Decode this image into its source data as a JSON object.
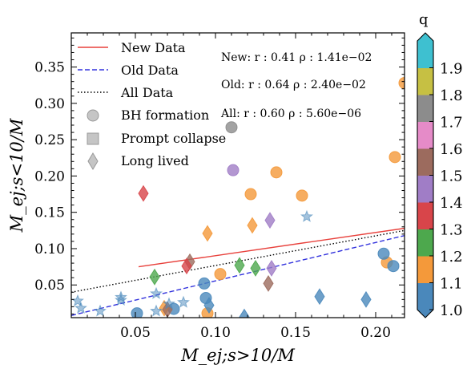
{
  "chart_data": {
    "type": "scatter",
    "xlabel": "M_ej;s>10/M",
    "ylabel": "M_ej;s<10/M",
    "xlim": [
      0.01,
      0.218
    ],
    "ylim": [
      0.005,
      0.397
    ],
    "x_ticks": [
      0.05,
      0.1,
      0.15,
      0.2
    ],
    "x_tick_labels": [
      "0.05",
      "0.10",
      "0.15",
      "0.20"
    ],
    "y_ticks": [
      0.05,
      0.1,
      0.15,
      0.2,
      0.25,
      0.3,
      0.35
    ],
    "y_tick_labels": [
      "0.05",
      "0.10",
      "0.15",
      "0.20",
      "0.25",
      "0.30",
      "0.35"
    ],
    "grid": false,
    "legend_placement": "top-left",
    "legend": {
      "lines": [
        {
          "label": "New Data",
          "color": "#e8413c",
          "style": "solid"
        },
        {
          "label": "Old Data",
          "color": "#3333dd",
          "style": "dashed"
        },
        {
          "label": "All Data",
          "color": "#000000",
          "style": "dotted"
        }
      ],
      "markers": [
        {
          "label": "BH formation",
          "shape": "circle"
        },
        {
          "label": "Prompt collapse",
          "shape": "square"
        },
        {
          "label": "Long lived",
          "shape": "diamond"
        }
      ]
    },
    "stats": [
      "New: r : 0.41 ρ : 1.41e−02",
      "Old: r : 0.64 ρ : 2.40e−02",
      "All: r : 0.60 ρ : 5.60e−06"
    ],
    "fits": [
      {
        "name": "New Data",
        "x": [
          0.052,
          0.218
        ],
        "y": [
          0.075,
          0.128
        ]
      },
      {
        "name": "Old Data",
        "x": [
          0.01,
          0.218
        ],
        "y": [
          0.008,
          0.118
        ]
      },
      {
        "name": "All Data",
        "x": [
          0.01,
          0.218
        ],
        "y": [
          0.04,
          0.125
        ]
      }
    ],
    "colorbar": {
      "label": "q",
      "ticks": [
        "1.0",
        "1.1",
        "1.2",
        "1.3",
        "1.4",
        "1.5",
        "1.6",
        "1.7",
        "1.8",
        "1.9"
      ],
      "colors": [
        "#4a88bb",
        "#f4993a",
        "#4da84d",
        "#d8454a",
        "#a07dc6",
        "#9c6b5e",
        "#e58bc8",
        "#8c8c8c",
        "#c6c043",
        "#3ec0d0"
      ]
    },
    "points": [
      {
        "x": 0.218,
        "y": 0.328,
        "q": 1.1,
        "m": "circle",
        "alpha": 0.8
      },
      {
        "x": 0.11,
        "y": 0.267,
        "q": 1.7,
        "m": "circle",
        "alpha": 0.8
      },
      {
        "x": 0.212,
        "y": 0.226,
        "q": 1.1,
        "m": "circle",
        "alpha": 0.8
      },
      {
        "x": 0.111,
        "y": 0.208,
        "q": 1.4,
        "m": "circle",
        "alpha": 0.8
      },
      {
        "x": 0.138,
        "y": 0.205,
        "q": 1.1,
        "m": "circle",
        "alpha": 0.8
      },
      {
        "x": 0.122,
        "y": 0.175,
        "q": 1.1,
        "m": "circle",
        "alpha": 0.8
      },
      {
        "x": 0.154,
        "y": 0.173,
        "q": 1.1,
        "m": "circle",
        "alpha": 0.8
      },
      {
        "x": 0.103,
        "y": 0.065,
        "q": 1.1,
        "m": "circle",
        "alpha": 0.8
      },
      {
        "x": 0.207,
        "y": 0.081,
        "q": 1.1,
        "m": "circle",
        "alpha": 0.8
      },
      {
        "x": 0.205,
        "y": 0.093,
        "q": 1.0,
        "m": "circle",
        "alpha": 0.8
      },
      {
        "x": 0.211,
        "y": 0.076,
        "q": 1.0,
        "m": "circle",
        "alpha": 0.8
      },
      {
        "x": 0.093,
        "y": 0.052,
        "q": 1.0,
        "m": "circle",
        "alpha": 0.8
      },
      {
        "x": 0.094,
        "y": 0.032,
        "q": 1.0,
        "m": "circle",
        "alpha": 0.8
      },
      {
        "x": 0.051,
        "y": 0.011,
        "q": 1.0,
        "m": "circle",
        "alpha": 0.8
      },
      {
        "x": 0.074,
        "y": 0.017,
        "q": 1.0,
        "m": "circle",
        "alpha": 0.8
      },
      {
        "x": 0.095,
        "y": 0.011,
        "q": 1.1,
        "m": "circle",
        "alpha": 0.8
      },
      {
        "x": 0.055,
        "y": 0.176,
        "q": 1.3,
        "m": "diamond",
        "alpha": 0.8
      },
      {
        "x": 0.134,
        "y": 0.139,
        "q": 1.4,
        "m": "diamond",
        "alpha": 0.8
      },
      {
        "x": 0.123,
        "y": 0.132,
        "q": 1.1,
        "m": "diamond",
        "alpha": 0.8
      },
      {
        "x": 0.095,
        "y": 0.121,
        "q": 1.1,
        "m": "diamond",
        "alpha": 0.8
      },
      {
        "x": 0.084,
        "y": 0.082,
        "q": 1.5,
        "m": "diamond",
        "alpha": 0.8
      },
      {
        "x": 0.082,
        "y": 0.076,
        "q": 1.3,
        "m": "diamond",
        "alpha": 0.8
      },
      {
        "x": 0.115,
        "y": 0.077,
        "q": 1.2,
        "m": "diamond",
        "alpha": 0.8
      },
      {
        "x": 0.125,
        "y": 0.073,
        "q": 1.2,
        "m": "diamond",
        "alpha": 0.8
      },
      {
        "x": 0.135,
        "y": 0.073,
        "q": 1.4,
        "m": "diamond",
        "alpha": 0.8
      },
      {
        "x": 0.062,
        "y": 0.061,
        "q": 1.2,
        "m": "diamond",
        "alpha": 0.8
      },
      {
        "x": 0.133,
        "y": 0.052,
        "q": 1.5,
        "m": "diamond",
        "alpha": 0.8
      },
      {
        "x": 0.165,
        "y": 0.034,
        "q": 1.0,
        "m": "diamond",
        "alpha": 0.8
      },
      {
        "x": 0.194,
        "y": 0.03,
        "q": 1.0,
        "m": "diamond",
        "alpha": 0.8
      },
      {
        "x": 0.096,
        "y": 0.022,
        "q": 1.0,
        "m": "diamond",
        "alpha": 0.8
      },
      {
        "x": 0.068,
        "y": 0.018,
        "q": 1.1,
        "m": "diamond",
        "alpha": 0.8
      },
      {
        "x": 0.07,
        "y": 0.016,
        "q": 1.5,
        "m": "diamond",
        "alpha": 0.8
      },
      {
        "x": 0.118,
        "y": 0.006,
        "q": 1.0,
        "m": "diamond",
        "alpha": 0.8
      },
      {
        "x": 0.157,
        "y": 0.144,
        "q": 1.0,
        "m": "star",
        "alpha": 0.5
      },
      {
        "x": 0.014,
        "y": 0.028,
        "q": 1.0,
        "m": "star",
        "alpha": 0.5
      },
      {
        "x": 0.016,
        "y": 0.018,
        "q": 1.0,
        "m": "star",
        "alpha": 0.5
      },
      {
        "x": 0.028,
        "y": 0.014,
        "q": 1.0,
        "m": "star",
        "alpha": 0.5
      },
      {
        "x": 0.041,
        "y": 0.033,
        "q": 1.0,
        "m": "star",
        "alpha": 0.5
      },
      {
        "x": 0.041,
        "y": 0.029,
        "q": 1.0,
        "m": "star",
        "alpha": 0.5
      },
      {
        "x": 0.063,
        "y": 0.038,
        "q": 1.0,
        "m": "star",
        "alpha": 0.5
      },
      {
        "x": 0.063,
        "y": 0.014,
        "q": 1.0,
        "m": "star",
        "alpha": 0.5
      },
      {
        "x": 0.071,
        "y": 0.024,
        "q": 1.0,
        "m": "star",
        "alpha": 0.5
      },
      {
        "x": 0.08,
        "y": 0.026,
        "q": 1.0,
        "m": "star",
        "alpha": 0.5
      }
    ]
  }
}
